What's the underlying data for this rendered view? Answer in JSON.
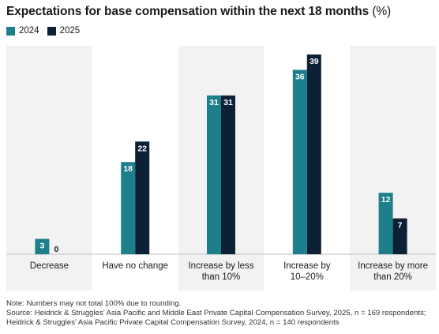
{
  "title": "Expectations for base compensation within the next 18 months",
  "title_unit": "(%)",
  "colors": {
    "series_2024": "#1d7f8c",
    "series_2025": "#0d2136",
    "panel": "#f2f2f2",
    "label_text": "#ffffff"
  },
  "chart_data": {
    "type": "bar",
    "title": "Expectations for base compensation within the next 18 months (%)",
    "categories": [
      "Decrease",
      "Have no change",
      "Increase by less than 10%",
      "Increase by 10–20%",
      "Increase by more than 20%"
    ],
    "category_label_lines": [
      [
        "Decrease"
      ],
      [
        "Have no change"
      ],
      [
        "Increase by less",
        "than 10%"
      ],
      [
        "Increase by",
        "10–20%"
      ],
      [
        "Increase by more",
        "than 20%"
      ]
    ],
    "series": [
      {
        "name": "2024",
        "values": [
          3,
          18,
          31,
          36,
          12
        ]
      },
      {
        "name": "2025",
        "values": [
          0,
          22,
          31,
          39,
          7
        ]
      }
    ],
    "ylim": [
      0,
      42
    ],
    "grid": false,
    "alternating_panels": true,
    "legend_position": "top-left",
    "data_labels": true
  },
  "notes": {
    "note": "Note: Numbers may not total 100% due to rounding.",
    "source": "Source: Heidrick & Struggles’ Asia Pacific and Middle East Private Capital Compensation Survey, 2025, n = 169 respondents; Heidrick & Struggles’ Asia Pacific Private Capital Compensation Survey, 2024, n = 140 respondents"
  }
}
